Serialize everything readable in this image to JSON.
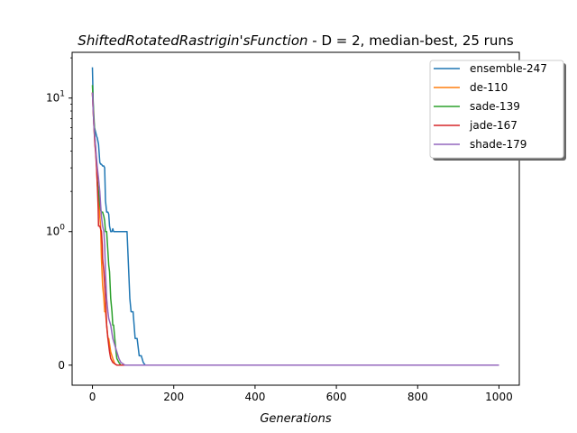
{
  "chart_data": {
    "type": "line",
    "title": "ShiftedRotatedRastrigin'sFunction",
    "subtitle": "  - D = 2, median-best, 25 runs",
    "xlabel": "Generations",
    "ylabel": "",
    "xlim": [
      -50,
      1050
    ],
    "yscale": "symlog",
    "linthresh": 1,
    "ylim": [
      -0.15,
      22
    ],
    "xticks": [
      0,
      200,
      400,
      600,
      800,
      1000
    ],
    "xtick_labels": [
      "0",
      "200",
      "400",
      "600",
      "800",
      "1000"
    ],
    "ytick_labels": [
      {
        "base": "0",
        "exp": "",
        "value": 0
      },
      {
        "base": "10",
        "exp": "0",
        "value": 1
      },
      {
        "base": "10",
        "exp": "1",
        "value": 10
      }
    ],
    "legend_position": "top-right",
    "series": [
      {
        "name": "ensemble-247",
        "color": "#1f77b4",
        "x": [
          0,
          1,
          2,
          3,
          5,
          8,
          10,
          12,
          15,
          18,
          20,
          22,
          25,
          28,
          30,
          32,
          35,
          38,
          40,
          42,
          45,
          48,
          50,
          52,
          55,
          58,
          60,
          62,
          65,
          70,
          75,
          80,
          85,
          90,
          92,
          95,
          100,
          105,
          110,
          115,
          120,
          125,
          130,
          140,
          1000
        ],
        "y": [
          17,
          12,
          9,
          7,
          6,
          5.5,
          5.2,
          5.0,
          4.5,
          3.3,
          3.2,
          3.2,
          3.1,
          3.1,
          3.0,
          1.7,
          1.4,
          1.4,
          1.35,
          1.1,
          1.0,
          1.0,
          1.05,
          1.0,
          1.0,
          1.0,
          1.0,
          1.0,
          1.0,
          1.0,
          1.0,
          1.0,
          1.0,
          0.65,
          0.5,
          0.4,
          0.4,
          0.2,
          0.2,
          0.07,
          0.07,
          0.02,
          0.0,
          0.0,
          0.0
        ]
      },
      {
        "name": "de-110",
        "color": "#ff7f0e",
        "x": [
          0,
          2,
          4,
          6,
          8,
          10,
          12,
          15,
          18,
          20,
          22,
          25,
          28,
          30,
          32,
          35,
          38,
          40,
          45,
          50,
          55,
          60,
          70,
          80,
          100,
          1000
        ],
        "y": [
          11,
          8,
          6,
          4.5,
          4,
          3.2,
          2.2,
          2.0,
          1.3,
          1.1,
          0.8,
          0.6,
          0.5,
          0.4,
          0.4,
          0.3,
          0.2,
          0.2,
          0.1,
          0.05,
          0.01,
          0.0,
          0.0,
          0.0,
          0.0,
          0.0
        ]
      },
      {
        "name": "sade-139",
        "color": "#2ca02c",
        "x": [
          0,
          2,
          4,
          6,
          8,
          10,
          12,
          15,
          18,
          20,
          22,
          25,
          28,
          30,
          32,
          35,
          38,
          40,
          42,
          45,
          48,
          50,
          52,
          55,
          58,
          60,
          65,
          70,
          80,
          100,
          1000
        ],
        "y": [
          12.5,
          9,
          7,
          5,
          4,
          3.2,
          2.4,
          2.0,
          1.6,
          1.45,
          1.4,
          1.4,
          1.3,
          1.2,
          1.0,
          1.0,
          0.85,
          0.75,
          0.7,
          0.5,
          0.4,
          0.3,
          0.3,
          0.2,
          0.1,
          0.05,
          0.02,
          0.0,
          0.0,
          0.0,
          0.0
        ]
      },
      {
        "name": "jade-167",
        "color": "#d62728",
        "x": [
          0,
          2,
          4,
          6,
          8,
          10,
          12,
          14,
          15,
          18,
          20,
          22,
          24,
          25,
          28,
          30,
          32,
          35,
          38,
          40,
          42,
          45,
          50,
          55,
          60,
          70,
          80,
          100,
          1000
        ],
        "y": [
          11,
          8,
          6,
          4.5,
          3.8,
          3.0,
          2.2,
          1.5,
          1.1,
          1.1,
          1.05,
          1.0,
          0.9,
          0.8,
          0.7,
          0.6,
          0.5,
          0.3,
          0.2,
          0.15,
          0.1,
          0.05,
          0.02,
          0.01,
          0.0,
          0.0,
          0.0,
          0.0,
          0.0
        ]
      },
      {
        "name": "shade-179",
        "color": "#9467bd",
        "x": [
          0,
          2,
          4,
          6,
          8,
          10,
          12,
          15,
          18,
          20,
          22,
          25,
          28,
          30,
          32,
          35,
          38,
          40,
          45,
          50,
          55,
          60,
          65,
          70,
          80,
          100,
          1000
        ],
        "y": [
          11,
          8,
          6,
          5,
          4.2,
          3.5,
          3.0,
          2.5,
          2.0,
          1.6,
          1.3,
          1.1,
          1.0,
          0.9,
          0.7,
          0.5,
          0.4,
          0.35,
          0.3,
          0.2,
          0.15,
          0.1,
          0.05,
          0.02,
          0.0,
          0.0,
          0.0
        ]
      }
    ]
  }
}
